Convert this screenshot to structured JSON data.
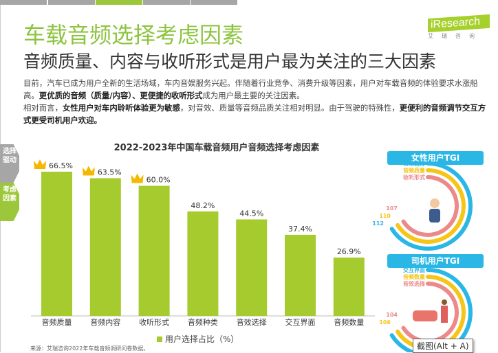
{
  "nav_tabs": [
    {
      "active": false
    },
    {
      "active": false
    },
    {
      "active": true
    },
    {
      "active": false
    },
    {
      "active": false
    }
  ],
  "title": "车载音频选择考虑因素",
  "subtitle": "音频质量、内容与收听形式是用户最为关注的三大因素",
  "logo": {
    "word": "iResearch",
    "cn": "艾瑞咨询"
  },
  "paragraph": {
    "p1a": "目前，汽车已成为用户全新的生活场域，车内音娱服务兴起。伴随着行业竞争、消费升级等因素，用户对车载音频的体验要求水涨船高。",
    "p1b": "更优质的音频（质量/内容）、更便捷的收听形式",
    "p1c": "成为用户最主要的关注因素。",
    "p2a": "相对而言，",
    "p2b": "女性用户对车内聆听体验更为敏感",
    "p2c": "，对音效、质量等音频品质关注相对明显。由于驾驶的特殊性，",
    "p2d": "更便利的音频调节交互方式更受司机用户欢迎。"
  },
  "side_tabs": [
    {
      "label": "选择驱动",
      "color": "#a6a6a6"
    },
    {
      "label": "考虑因素",
      "color": "#9dc73a"
    }
  ],
  "chart_data": {
    "type": "bar",
    "title": "2022-2023年中国车载音频用户音频选择考虑因素",
    "categories": [
      "音频质量",
      "音频内容",
      "收听形式",
      "音频种类",
      "音效选择",
      "交互界面",
      "音频数量"
    ],
    "series": [
      {
        "name": "用户选择占比（%）",
        "values": [
          66.5,
          63.5,
          60.0,
          48.2,
          44.5,
          37.4,
          26.9
        ],
        "color": "#a6cb2e"
      }
    ],
    "data_labels": [
      "66.5%",
      "63.5%",
      "60.0%",
      "48.2%",
      "44.5%",
      "37.4%",
      "26.9%"
    ],
    "crowned_top": 3,
    "legend": "bottom",
    "ylim": [
      0,
      70
    ],
    "grid": false
  },
  "tgi": [
    {
      "title": "女性用户TGI",
      "items": [
        {
          "label": "音效选择",
          "value": 112,
          "color": "#2bb7e6"
        },
        {
          "label": "音频质量",
          "value": 110,
          "color": "#f5c518"
        },
        {
          "label": "收听形式",
          "value": 107,
          "color": "#ec8a8a"
        }
      ]
    },
    {
      "title": "司机用户TGI",
      "items": [
        {
          "label": "交互界面",
          "value": null,
          "color": "#2bb7e6"
        },
        {
          "label": "音频数量",
          "value": 106,
          "color": "#f5c518"
        },
        {
          "label": "音效选择",
          "value": 104,
          "color": "#ec8a8a"
        }
      ]
    }
  ],
  "tooltip": "截图(Alt + A)",
  "source": "来源：艾瑞咨询2022年车载音频调研问卷数据。"
}
